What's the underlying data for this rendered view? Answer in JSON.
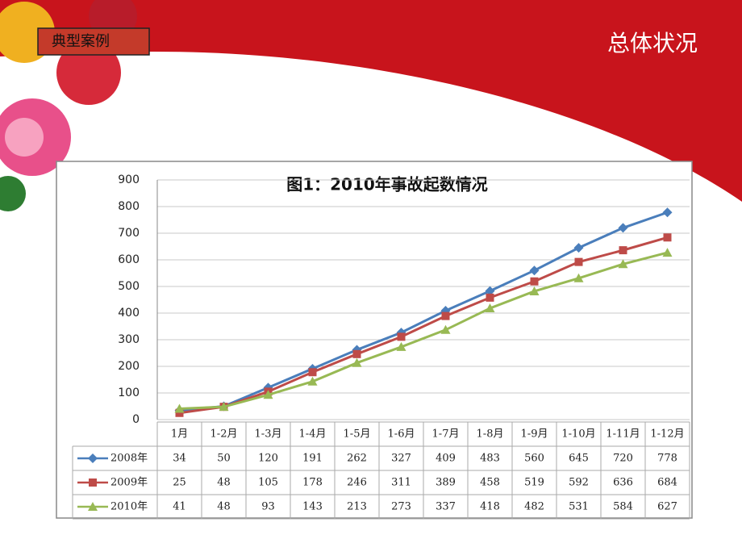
{
  "header": {
    "tag": "典型案例",
    "title": "总体状况"
  },
  "chart_data": {
    "type": "line",
    "title": "图1：2010年事故起数情况",
    "categories": [
      "1月",
      "1-2月",
      "1-3月",
      "1-4月",
      "1-5月",
      "1-6月",
      "1-7月",
      "1-8月",
      "1-9月",
      "1-10月",
      "1-11月",
      "1-12月"
    ],
    "series": [
      {
        "name": "2008年",
        "color": "#4a7ebb",
        "marker": "diamond",
        "values": [
          34,
          50,
          120,
          191,
          262,
          327,
          409,
          483,
          560,
          645,
          720,
          778
        ]
      },
      {
        "name": "2009年",
        "color": "#be4b48",
        "marker": "square",
        "values": [
          25,
          48,
          105,
          178,
          246,
          311,
          389,
          458,
          519,
          592,
          636,
          684
        ]
      },
      {
        "name": "2010年",
        "color": "#98b954",
        "marker": "triangle",
        "values": [
          41,
          48,
          93,
          143,
          213,
          273,
          337,
          418,
          482,
          531,
          584,
          627
        ]
      }
    ],
    "ylim": [
      0,
      900
    ],
    "yticks": [
      0,
      100,
      200,
      300,
      400,
      500,
      600,
      700,
      800,
      900
    ],
    "grid": true,
    "data_table": true
  }
}
